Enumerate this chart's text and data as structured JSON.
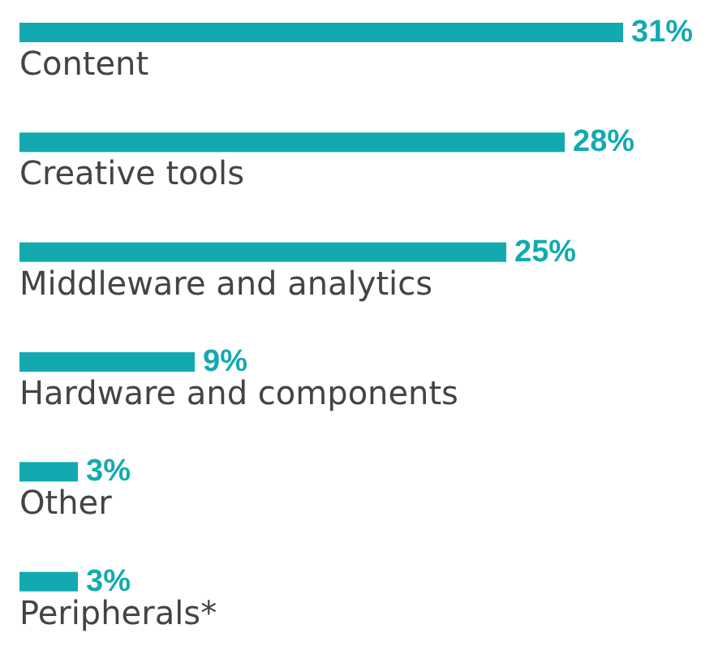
{
  "chart_data": {
    "type": "bar",
    "orientation": "horizontal",
    "relative": false,
    "categories": [
      "Content",
      "Creative tools",
      "Middleware and analytics",
      "Hardware and components",
      "Other",
      "Peripherals*"
    ],
    "values": [
      31,
      28,
      25,
      9,
      3,
      3
    ],
    "value_labels": [
      "31%",
      "28%",
      "25%",
      "9%",
      "3%",
      "3%"
    ],
    "color": "#12aab0"
  }
}
